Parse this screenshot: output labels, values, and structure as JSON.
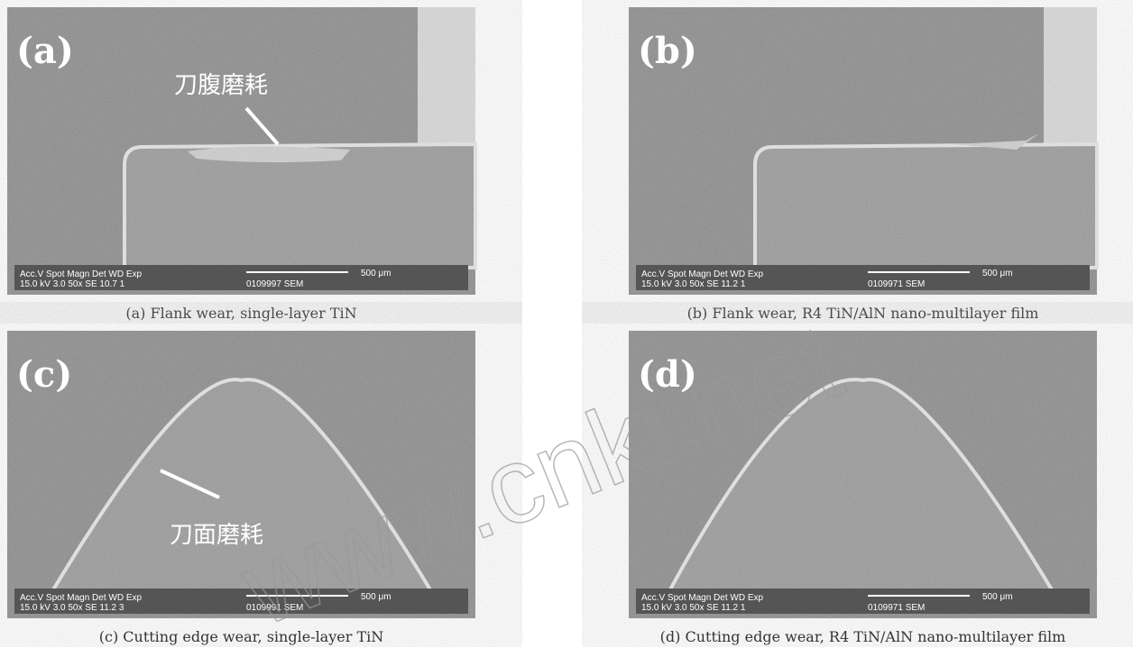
{
  "panels": [
    {
      "label": "(a)",
      "annotation": "刀腹磨耗",
      "info_top": "Acc.V  Spot Magn   Det  WD  Exp",
      "info_bottom": "15.0 kV 3.0  50x   SE  10.7 1",
      "scale": "500 μm",
      "id": "0109997 SEM",
      "caption": "(a) Flank wear, single-layer TiN"
    },
    {
      "label": "(b)",
      "info_top": "Acc.V  Spot Magn   Det  WD  Exp",
      "info_bottom": "15.0 kV 3.0  50x   SE  11.2 1",
      "scale": "500 μm",
      "id": "0109971 SEM",
      "caption": "(b) Flank wear, R4 TiN/AlN nano-multilayer film"
    },
    {
      "label": "(c)",
      "annotation": "刀面磨耗",
      "info_top": "Acc.V  Spot Magn   Det  WD  Exp",
      "info_bottom": "15.0 kV 3.0  50x   SE  11.2 3",
      "scale": "500 μm",
      "id": "0109991 SEM",
      "caption": "(c) Cutting edge wear, single-layer TiN"
    },
    {
      "label": "(d)",
      "info_top": "Acc.V  Spot Magn   Det  WD  Exp",
      "info_bottom": "15.0 kV 3.0  50x   SE  11.2 1",
      "scale": "500 μm",
      "id": "0109971 SEM",
      "caption": "(d) Cutting edge wear, R4 TiN/AlN nano-multilayer film"
    }
  ],
  "watermark": "www.cnki.net"
}
